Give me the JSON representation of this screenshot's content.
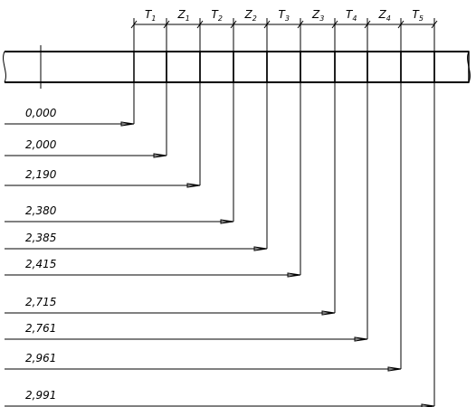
{
  "intervals": [
    {
      "letter": "T",
      "index": "1"
    },
    {
      "letter": "Z",
      "index": "1"
    },
    {
      "letter": "T",
      "index": "2"
    },
    {
      "letter": "Z",
      "index": "2"
    },
    {
      "letter": "T",
      "index": "3"
    },
    {
      "letter": "Z",
      "index": "3"
    },
    {
      "letter": "T",
      "index": "4"
    },
    {
      "letter": "Z",
      "index": "4"
    },
    {
      "letter": "T",
      "index": "5"
    }
  ],
  "dimensions": [
    "0,000",
    "2,000",
    "2,190",
    "2,380",
    "2,385",
    "2,415",
    "2,715",
    "2,761",
    "2,961",
    "2,991"
  ]
}
